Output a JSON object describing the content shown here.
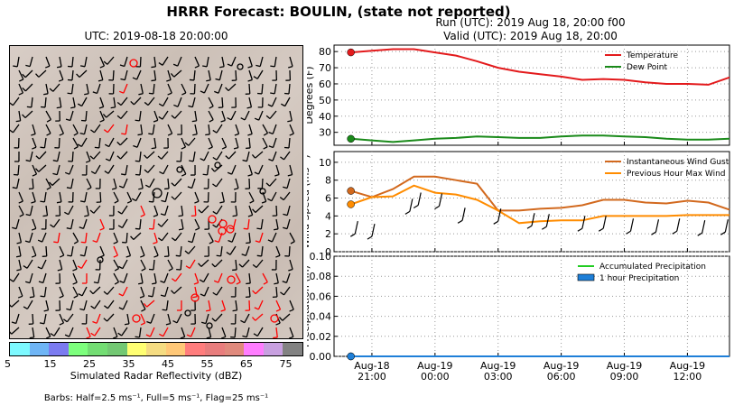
{
  "figure": {
    "suptitle": "HRRR Forecast: BOULIN, (state not reported)",
    "run_label": "Run (UTC): 2019 Aug 18, 20:00 f00",
    "valid_label": "Valid (UTC): 2019 Aug 18, 20:00",
    "map_title": "UTC: 2019-08-18 20:00:00",
    "colorbar_label": "Simulated Radar Reflectivity (dBZ)",
    "colorbar_ticks": [
      "5",
      "15",
      "25",
      "35",
      "45",
      "55",
      "65",
      "75"
    ],
    "colorbar_colors": [
      "#7df9ff",
      "#6fb5f5",
      "#7b7bf0",
      "#7dff7d",
      "#73dd73",
      "#73c873",
      "#ffff73",
      "#f5dc82",
      "#ffc878",
      "#ff7d7d",
      "#e87d7d",
      "#e08a7d",
      "#ff7dff",
      "#c8a0e0",
      "#828282"
    ],
    "barbs_label": "Barbs: Half=2.5 ms⁻¹, Full=5 ms⁻¹, Flag=25 ms⁻¹",
    "x_tick_labels": [
      [
        "Aug-18",
        "21:00"
      ],
      [
        "Aug-19",
        "00:00"
      ],
      [
        "Aug-19",
        "03:00"
      ],
      [
        "Aug-19",
        "06:00"
      ],
      [
        "Aug-19",
        "09:00"
      ],
      [
        "Aug-19",
        "12:00"
      ]
    ]
  },
  "chart_data": [
    {
      "type": "line",
      "ylabel": "Degrees (F)",
      "ylim": [
        22,
        84
      ],
      "yticks": [
        30,
        40,
        50,
        60,
        70,
        80
      ],
      "grid": true,
      "legend_position": "top-right",
      "x_hours": [
        20,
        21,
        22,
        23,
        24,
        25,
        26,
        27,
        28,
        29,
        30,
        31,
        32,
        33,
        34,
        35,
        36,
        37,
        38
      ],
      "series": [
        {
          "name": "Temperature",
          "color": "#e31a1c",
          "values": [
            79.5,
            80.5,
            81.5,
            81.5,
            79.5,
            77.5,
            74,
            70,
            67.5,
            66,
            64.5,
            62.5,
            63,
            62.5,
            61,
            60,
            60,
            59.5,
            64
          ]
        },
        {
          "name": "Dew Point",
          "color": "#1a8a1a",
          "values": [
            26,
            25,
            24,
            25,
            26,
            26.5,
            27.5,
            27,
            26.5,
            26.5,
            27.5,
            28,
            28,
            27.5,
            27,
            26,
            25.5,
            25.5,
            26
          ]
        }
      ]
    },
    {
      "type": "line",
      "ylabel": "Wind Speed (ms⁻¹)",
      "ylim": [
        0,
        11.2
      ],
      "yticks": [
        0,
        2,
        4,
        6,
        8,
        10
      ],
      "grid": true,
      "legend_position": "top-right",
      "x_hours": [
        20,
        21,
        22,
        23,
        24,
        25,
        26,
        27,
        28,
        29,
        30,
        31,
        32,
        33,
        34,
        35,
        36,
        37,
        38
      ],
      "series": [
        {
          "name": "Instantaneous Wind Gust",
          "color": "#d2691e",
          "values": [
            6.8,
            6.1,
            7,
            8.4,
            8.4,
            8,
            7.6,
            4.6,
            4.6,
            4.8,
            4.9,
            5.2,
            5.8,
            5.8,
            5.5,
            5.4,
            5.7,
            5.5,
            4.7
          ]
        },
        {
          "name": "Previous Hour Max Wind",
          "color": "#ff8c00",
          "values": [
            5.3,
            6.1,
            6.2,
            7.4,
            6.6,
            6.4,
            5.8,
            4.6,
            3.2,
            3.4,
            3.5,
            3.5,
            4,
            4,
            4,
            4,
            4.1,
            4.1,
            4.1
          ]
        }
      ]
    },
    {
      "type": "line",
      "ylabel": "Precipitation (in)",
      "ylim": [
        0,
        0.1
      ],
      "yticks": [
        0.0,
        0.02,
        0.04,
        0.06,
        0.08,
        0.1
      ],
      "ytick_labels": [
        "0.00",
        "0.02",
        "0.04",
        "0.06",
        "0.08",
        "0.10"
      ],
      "grid": true,
      "legend_position": "top-right",
      "x_hours": [
        20,
        21,
        22,
        23,
        24,
        25,
        26,
        27,
        28,
        29,
        30,
        31,
        32,
        33,
        34,
        35,
        36,
        37,
        38
      ],
      "series": [
        {
          "name": "Accumulated Precipitation",
          "color": "#22cc22",
          "values": [
            0,
            0,
            0,
            0,
            0,
            0,
            0,
            0,
            0,
            0,
            0,
            0,
            0,
            0,
            0,
            0,
            0,
            0,
            0
          ]
        },
        {
          "name": "1 hour Precipitation",
          "color": "#1e7fd8",
          "values": [
            0,
            0,
            0,
            0,
            0,
            0,
            0,
            0,
            0,
            0,
            0,
            0,
            0,
            0,
            0,
            0,
            0,
            0,
            0
          ]
        }
      ]
    }
  ]
}
